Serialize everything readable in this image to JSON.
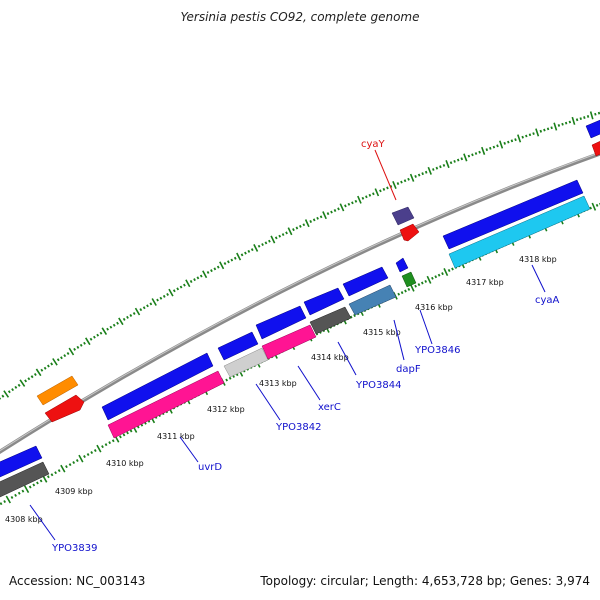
{
  "title": "Yersinia pestis CO92, complete genome",
  "footer": {
    "accession": "Accession: NC_003143",
    "stats": "Topology: circular; Length: 4,653,728 bp; Genes: 3,974"
  },
  "colors": {
    "backbone": "#888888",
    "tick": "#1a7f1a",
    "label_blue": "#1010cc",
    "label_red": "#dd1111"
  },
  "scale_labels": [
    "4308 kbp",
    "4309 kbp",
    "4310 kbp",
    "4311 kbp",
    "4312 kbp",
    "4313 kbp",
    "4314 kbp",
    "4315 kbp",
    "4316 kbp",
    "4317 kbp",
    "4318 kbp"
  ],
  "gene_labels": [
    {
      "text": "YPO3839",
      "color": "#1010cc"
    },
    {
      "text": "uvrD",
      "color": "#1010cc"
    },
    {
      "text": "YPO3842",
      "color": "#1010cc"
    },
    {
      "text": "xerC",
      "color": "#1010cc"
    },
    {
      "text": "YPO3844",
      "color": "#1010cc"
    },
    {
      "text": "dapF",
      "color": "#1010cc"
    },
    {
      "text": "YPO3846",
      "color": "#1010cc"
    },
    {
      "text": "cyaA",
      "color": "#1010cc"
    },
    {
      "text": "cyaY",
      "color": "#dd1111"
    }
  ]
}
